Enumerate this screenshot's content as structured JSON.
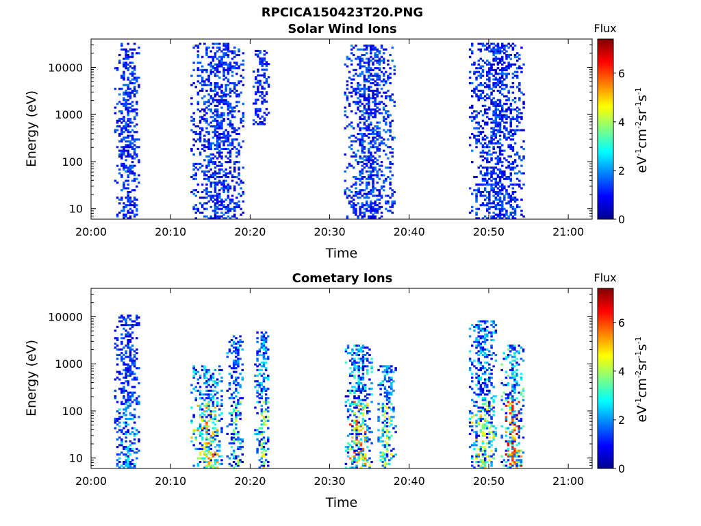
{
  "figure": {
    "title": "RPCICA150423T20.PNG"
  },
  "colorbar": {
    "label": "Flux",
    "units": "eV-1cm-2sr-1s-1",
    "ticks": [
      "0",
      "2",
      "4",
      "6"
    ],
    "range": [
      0,
      7.4
    ],
    "colormap": "jet"
  },
  "chart_data": [
    {
      "type": "heatmap",
      "title": "Solar Wind Ions",
      "xlabel": "Time",
      "ylabel": "Energy (eV)",
      "x_ticks": [
        "20:00",
        "20:10",
        "20:20",
        "20:30",
        "20:40",
        "20:50",
        "21:00"
      ],
      "y_ticks": [
        "10",
        "100",
        "1000",
        "10000"
      ],
      "y_scale": "log",
      "ylim": [
        6,
        40000
      ],
      "xlim_minutes": [
        0,
        63
      ],
      "bursts": [
        {
          "t_start": 2.9,
          "t_end": 6.1,
          "e_min": 6,
          "e_max": 33000,
          "peak_flux": 3.0
        },
        {
          "t_start": 12.5,
          "t_end": 19.2,
          "e_min": 6,
          "e_max": 33000,
          "peak_flux": 3.0
        },
        {
          "t_start": 20.3,
          "t_end": 22.2,
          "e_min": 600,
          "e_max": 22000,
          "peak_flux": 2.6
        },
        {
          "t_start": 31.8,
          "t_end": 38.2,
          "e_min": 6,
          "e_max": 30000,
          "peak_flux": 3.2
        },
        {
          "t_start": 47.5,
          "t_end": 54.4,
          "e_min": 6,
          "e_max": 33000,
          "peak_flux": 3.0
        }
      ]
    },
    {
      "type": "heatmap",
      "title": "Cometary Ions",
      "xlabel": "Time",
      "ylabel": "Energy (eV)",
      "x_ticks": [
        "20:00",
        "20:10",
        "20:20",
        "20:30",
        "20:40",
        "20:50",
        "21:00"
      ],
      "y_ticks": [
        "10",
        "100",
        "1000",
        "10000"
      ],
      "y_scale": "log",
      "ylim": [
        6,
        40000
      ],
      "xlim_minutes": [
        0,
        63
      ],
      "bursts": [
        {
          "t_start": 2.9,
          "t_end": 6.1,
          "e_min": 6,
          "e_max": 11000,
          "peak_flux": 3.0
        },
        {
          "t_start": 12.5,
          "t_end": 16.5,
          "e_min": 6,
          "e_max": 900,
          "peak_flux": 6.0
        },
        {
          "t_start": 17.0,
          "t_end": 19.0,
          "e_min": 6,
          "e_max": 4000,
          "peak_flux": 4.5
        },
        {
          "t_start": 20.5,
          "t_end": 22.3,
          "e_min": 6,
          "e_max": 4500,
          "peak_flux": 5.0
        },
        {
          "t_start": 31.9,
          "t_end": 35.3,
          "e_min": 6,
          "e_max": 2500,
          "peak_flux": 6.3
        },
        {
          "t_start": 36.0,
          "t_end": 38.2,
          "e_min": 6,
          "e_max": 900,
          "peak_flux": 5.0
        },
        {
          "t_start": 47.5,
          "t_end": 51.0,
          "e_min": 6,
          "e_max": 8000,
          "peak_flux": 5.2
        },
        {
          "t_start": 51.5,
          "t_end": 54.4,
          "e_min": 6,
          "e_max": 2500,
          "peak_flux": 7.2
        }
      ]
    }
  ]
}
